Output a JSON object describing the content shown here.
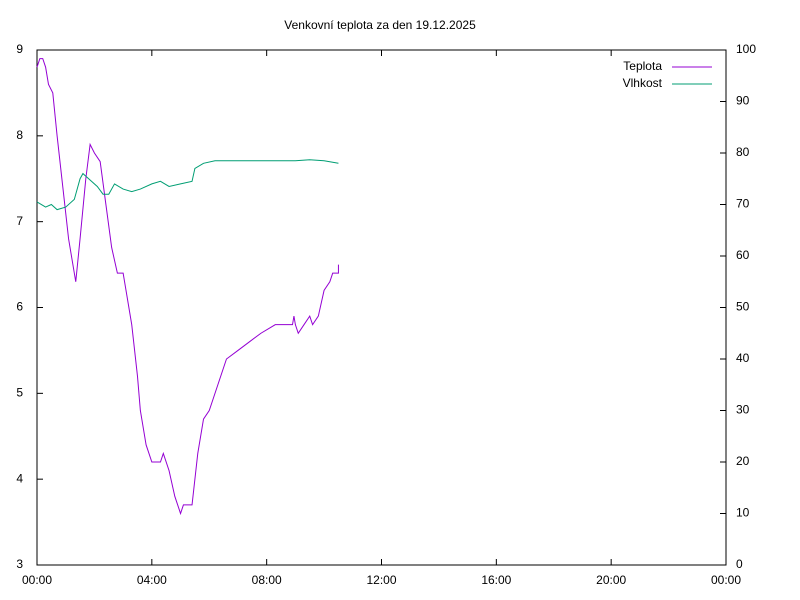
{
  "chart_data": {
    "type": "line",
    "title": "Venkovní teplota za den 19.12.2025",
    "xlim": [
      0,
      24
    ],
    "xticks": [
      {
        "value": 0,
        "label": "00:00"
      },
      {
        "value": 4,
        "label": "04:00"
      },
      {
        "value": 8,
        "label": "08:00"
      },
      {
        "value": 12,
        "label": "12:00"
      },
      {
        "value": 16,
        "label": "16:00"
      },
      {
        "value": 20,
        "label": "20:00"
      },
      {
        "value": 24,
        "label": "00:00"
      }
    ],
    "ylim": [
      3,
      9
    ],
    "yticks": [
      3,
      4,
      5,
      6,
      7,
      8,
      9
    ],
    "y2lim": [
      0,
      100
    ],
    "y2ticks": [
      0,
      10,
      20,
      30,
      40,
      50,
      60,
      70,
      80,
      90,
      100
    ],
    "legend": "top-right",
    "series": [
      {
        "name": "Teplota",
        "color": "#9400d3",
        "axis": "y",
        "x": [
          0,
          0.1,
          0.2,
          0.3,
          0.4,
          0.55,
          0.7,
          0.9,
          1.1,
          1.3,
          1.35,
          1.5,
          1.7,
          1.85,
          2.0,
          2.2,
          2.4,
          2.6,
          2.8,
          3.0,
          3.1,
          3.3,
          3.5,
          3.6,
          3.8,
          4.0,
          4.3,
          4.4,
          4.6,
          4.8,
          5.0,
          5.1,
          5.4,
          5.6,
          5.8,
          6.0,
          6.3,
          6.6,
          7.0,
          7.4,
          7.8,
          8.3,
          8.9,
          8.95,
          9.0,
          9.1,
          9.3,
          9.5,
          9.6,
          9.8,
          10.0,
          10.2,
          10.3,
          10.5,
          10.5
        ],
        "values": [
          8.8,
          8.9,
          8.9,
          8.8,
          8.6,
          8.5,
          8.0,
          7.4,
          6.8,
          6.4,
          6.3,
          6.8,
          7.5,
          7.9,
          7.8,
          7.7,
          7.2,
          6.7,
          6.4,
          6.4,
          6.2,
          5.8,
          5.2,
          4.8,
          4.4,
          4.2,
          4.2,
          4.3,
          4.1,
          3.8,
          3.6,
          3.7,
          3.7,
          4.3,
          4.7,
          4.8,
          5.1,
          5.4,
          5.5,
          5.6,
          5.7,
          5.8,
          5.8,
          5.9,
          5.8,
          5.7,
          5.8,
          5.9,
          5.8,
          5.9,
          6.2,
          6.3,
          6.4,
          6.4,
          6.5
        ]
      },
      {
        "name": "Vlhkost",
        "color": "#009e73",
        "axis": "y2",
        "x": [
          0,
          0.3,
          0.5,
          0.7,
          1.0,
          1.3,
          1.5,
          1.6,
          1.8,
          2.1,
          2.3,
          2.5,
          2.7,
          3.0,
          3.3,
          3.6,
          4.0,
          4.3,
          4.6,
          5.0,
          5.4,
          5.5,
          5.8,
          6.2,
          7,
          8,
          9,
          9.5,
          10,
          10.5
        ],
        "values": [
          70.5,
          69.5,
          70,
          69,
          69.5,
          71,
          75,
          76,
          75,
          73.5,
          72,
          72,
          74,
          73,
          72.5,
          73,
          74,
          74.5,
          73.5,
          74,
          74.5,
          77,
          78,
          78.5,
          78.5,
          78.5,
          78.5,
          78.7,
          78.5,
          78
        ]
      }
    ]
  }
}
